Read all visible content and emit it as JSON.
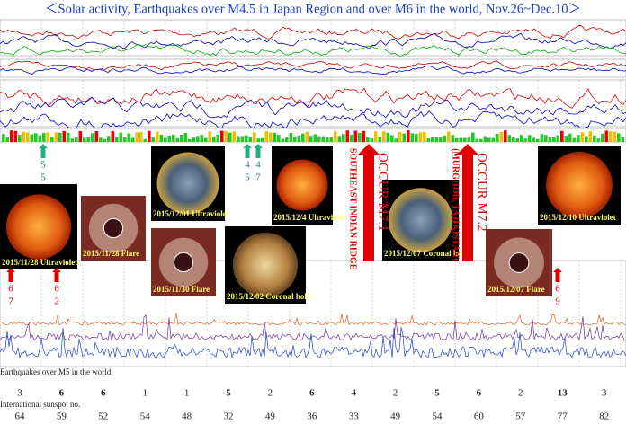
{
  "header": {
    "title": "＜Solar activity, Earthquakes over M4.5 in Japan Region and over M6 in the world, Nov.26~Dec.10＞"
  },
  "images": [
    {
      "caption": "2015/11/28 Ultraviolet",
      "kind": "sun"
    },
    {
      "caption": "2015/11/28 Flare",
      "kind": "corona"
    },
    {
      "caption": "2015/12/01 Ultraviolet",
      "kind": "sunblue"
    },
    {
      "caption": "2015/11/30 Flare",
      "kind": "corona"
    },
    {
      "caption": "2015/12/02 Coronal hole",
      "kind": "sungold"
    },
    {
      "caption": "2015/12/4 Ultraviolet",
      "kind": "sun"
    },
    {
      "caption": "2015/12/07 Coronal hole",
      "kind": "sunblue"
    },
    {
      "caption": "2015/12/07 Flare",
      "kind": "corona"
    },
    {
      "caption": "2015/12/10 Ultraviolet",
      "kind": "sun"
    }
  ],
  "events": [
    {
      "title": "OCCUR M7.1",
      "place": "SOUTHEAST INDIAN RIDGE"
    },
    {
      "title": "OCCUR M7.2",
      "place": "(MURGHOB, TAJIKISTAN)"
    }
  ],
  "arrows": [
    {
      "color": "green",
      "labels": [
        5,
        5
      ]
    },
    {
      "color": "green",
      "labels": [
        4,
        5
      ]
    },
    {
      "color": "green",
      "labels": [
        4,
        7
      ]
    },
    {
      "color": "red",
      "labels": [
        6,
        7
      ]
    },
    {
      "color": "red",
      "labels": [
        6,
        2
      ]
    },
    {
      "color": "red",
      "labels": [
        6,
        9
      ]
    }
  ],
  "table": {
    "earthquakes_label": "Earthquakes over M5 in the world",
    "earthquakes": [
      3,
      6,
      6,
      1,
      1,
      5,
      2,
      6,
      4,
      2,
      5,
      6,
      2,
      13,
      3
    ],
    "earthquake_colors": [
      "#222",
      "#e00",
      "#e00",
      "#222",
      "#222",
      "#e00",
      "#222",
      "#e00",
      "#222",
      "#222",
      "#e00",
      "#e00",
      "#222",
      "#e00",
      "#222"
    ],
    "sunspot_label": "International sunspot no.",
    "sunspots": [
      64,
      59,
      52,
      54,
      48,
      32,
      49,
      36,
      33,
      49,
      54,
      60,
      57,
      77,
      82
    ]
  }
}
